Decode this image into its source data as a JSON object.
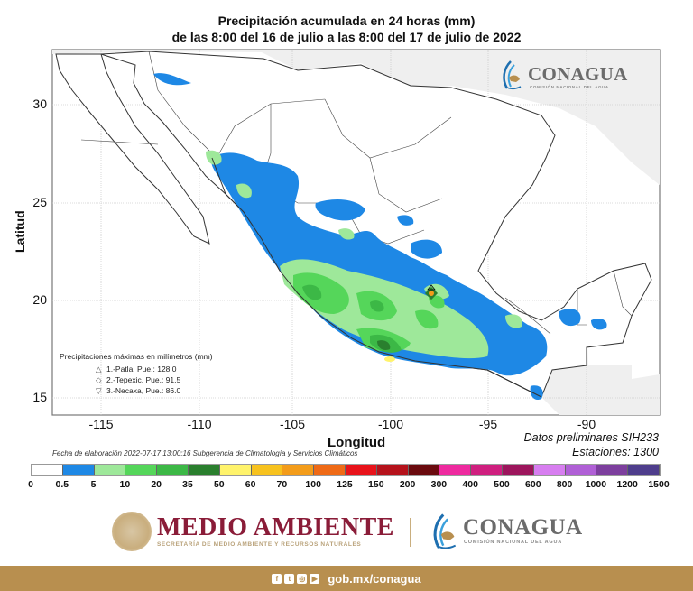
{
  "title": {
    "line1": "Precipitación acumulada en 24 horas (mm)",
    "line2": "de las 8:00 del 16 de julio a las 8:00 del 17 de julio de 2022"
  },
  "axes": {
    "xlabel": "Longitud",
    "ylabel": "Latitud",
    "xticks": [
      "-115",
      "-110",
      "-105",
      "-100",
      "-95",
      "-90"
    ],
    "yticks": [
      "30",
      "25",
      "20",
      "15"
    ]
  },
  "header_logo": {
    "name": "CONAGUA",
    "subtitle": "COMISIÓN NACIONAL DEL AGUA"
  },
  "max_precip": {
    "title": "Precipitaciones máximas en milímetros (mm)",
    "items": [
      {
        "symbol": "△",
        "label": "1.-Patla, Pue.: 128.0"
      },
      {
        "symbol": "◇",
        "label": "2.-Tepexic, Pue.: 91.5"
      },
      {
        "symbol": "▽",
        "label": "3.-Necaxa, Pue.: 86.0"
      }
    ]
  },
  "notes": {
    "fecha": "Fecha de elaboración 2022-07-17 13:00:16 Subgerencia de Climatología y Servicios Climáticos",
    "datos": "Datos preliminares SIH233",
    "estaciones": "Estaciones:  1300"
  },
  "colorbar": {
    "ticks": [
      "0",
      "0.5",
      "5",
      "10",
      "20",
      "35",
      "50",
      "60",
      "70",
      "100",
      "125",
      "150",
      "200",
      "300",
      "400",
      "500",
      "600",
      "800",
      "1000",
      "1200",
      "1500"
    ],
    "colors": [
      "#ffffff",
      "#1e88e5",
      "#9ee89a",
      "#55d65a",
      "#3cb846",
      "#2a7f2e",
      "#fff36b",
      "#f7c21e",
      "#f39c1a",
      "#ef6a16",
      "#e8131a",
      "#b5121b",
      "#6a0a0e",
      "#ee2a9f",
      "#cf1f7f",
      "#9c155c",
      "#d77ef0",
      "#b060d6",
      "#7d3f9e",
      "#4e3d8c"
    ]
  },
  "chart_data": {
    "type": "heatmap",
    "title": "Precipitación acumulada en 24 horas (mm) — de las 8:00 del 16 de julio a las 8:00 del 17 de julio de 2022",
    "xlabel": "Longitud",
    "ylabel": "Latitud",
    "xlim": [
      -117.5,
      -86.5
    ],
    "ylim": [
      14,
      32.8
    ],
    "xticks": [
      -115,
      -110,
      -105,
      -100,
      -95,
      -90
    ],
    "yticks": [
      15,
      20,
      25,
      30
    ],
    "grid": true,
    "colorbar_levels_mm": [
      0,
      0.5,
      5,
      10,
      20,
      35,
      50,
      60,
      70,
      100,
      125,
      150,
      200,
      300,
      400,
      500,
      600,
      800,
      1000,
      1200,
      1500
    ],
    "annotations": [
      {
        "rank": 1,
        "station": "Patla, Pue.",
        "value_mm": 128.0,
        "marker": "triangle-up"
      },
      {
        "rank": 2,
        "station": "Tepexic, Pue.",
        "value_mm": 91.5,
        "marker": "diamond"
      },
      {
        "rank": 3,
        "station": "Necaxa, Pue.",
        "value_mm": 86.0,
        "marker": "triangle-down"
      }
    ],
    "source_note": "Datos preliminares SIH233",
    "stations": 1300
  },
  "footer": {
    "medio": "MEDIO AMBIENTE",
    "medio_sub": "SECRETARÍA DE MEDIO AMBIENTE Y RECURSOS NATURALES",
    "conagua": "CONAGUA",
    "conagua_sub": "COMISIÓN NACIONAL DEL AGUA",
    "social": [
      "f",
      "t",
      "◎",
      "▶"
    ],
    "url": "gob.mx/conagua"
  }
}
